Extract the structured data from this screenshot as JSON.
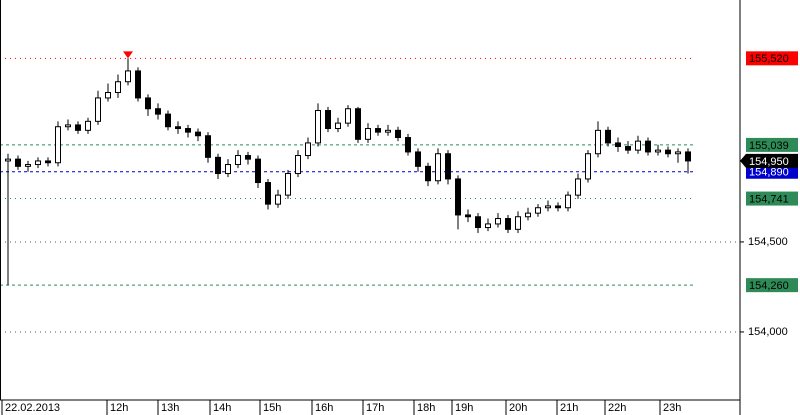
{
  "chart_data": {
    "type": "candlestick",
    "open": [
      154950,
      154960,
      154920,
      154930,
      154950,
      154940,
      155140,
      155150,
      155120,
      155170,
      155300,
      155330,
      155390,
      155450,
      155300,
      155240,
      155210,
      155140,
      155130,
      155110,
      155090,
      154970,
      154880,
      154930,
      154980,
      154960,
      154830,
      154710,
      154760,
      154880,
      154980,
      155050,
      155230,
      155130,
      155160,
      155240,
      155070,
      155130,
      155110,
      155120,
      155080,
      155000,
      154920,
      154840,
      154990,
      154850,
      154650,
      154640,
      154580,
      154600,
      154630,
      154570,
      154640,
      154660,
      154690,
      154700,
      154690,
      154760,
      154850,
      154990,
      155120,
      155050,
      155030,
      155010,
      155060,
      155000,
      155010,
      154990,
      155000
    ],
    "high": [
      154990,
      154980,
      154950,
      154970,
      154970,
      155170,
      155180,
      155170,
      155190,
      155340,
      155380,
      155430,
      155520,
      155470,
      155320,
      155270,
      155230,
      155170,
      155150,
      155130,
      155110,
      154990,
      154960,
      155010,
      155000,
      154980,
      154850,
      154790,
      154900,
      155010,
      155080,
      155270,
      155250,
      155190,
      155260,
      155250,
      155160,
      155150,
      155150,
      155140,
      155100,
      155020,
      154940,
      155020,
      155010,
      154870,
      154680,
      154660,
      154630,
      154660,
      154650,
      154670,
      154690,
      154710,
      154730,
      154720,
      154780,
      154880,
      155010,
      155170,
      155140,
      155080,
      155060,
      155090,
      155080,
      155040,
      155030,
      155020,
      155020
    ],
    "low": [
      154260,
      154900,
      154890,
      154910,
      154920,
      154920,
      155120,
      155100,
      155100,
      155150,
      155280,
      155300,
      155370,
      155280,
      155200,
      155180,
      155120,
      155100,
      155080,
      155060,
      154940,
      154850,
      154860,
      154910,
      154930,
      154800,
      154680,
      154690,
      154740,
      154860,
      154960,
      155030,
      155110,
      155110,
      155140,
      155050,
      155050,
      155090,
      155090,
      155060,
      154980,
      154890,
      154810,
      154820,
      154820,
      154570,
      154610,
      154550,
      154560,
      154580,
      154550,
      154550,
      154620,
      154640,
      154670,
      154670,
      154670,
      154740,
      154830,
      154970,
      155030,
      155000,
      154990,
      154990,
      154980,
      154980,
      154970,
      154940,
      154880
    ],
    "close": [
      154960,
      154920,
      154930,
      154950,
      154940,
      155140,
      155150,
      155120,
      155170,
      155300,
      155330,
      155390,
      155450,
      155300,
      155240,
      155210,
      155140,
      155130,
      155110,
      155090,
      154970,
      154880,
      154930,
      154980,
      154960,
      154830,
      154710,
      154760,
      154880,
      154980,
      155050,
      155230,
      155130,
      155160,
      155240,
      155070,
      155130,
      155110,
      155120,
      155080,
      155000,
      154920,
      154840,
      154990,
      154850,
      154650,
      154640,
      154580,
      154600,
      154630,
      154570,
      154640,
      154660,
      154690,
      154700,
      154690,
      154760,
      154850,
      154990,
      155120,
      155050,
      155030,
      155010,
      155060,
      155000,
      155010,
      154990,
      155000,
      154950
    ],
    "up_color": "#ffffff",
    "down_color": "#000000",
    "ylim": [
      153622,
      155844
    ],
    "yticks": [
      {
        "value": 154000,
        "label": "154,000"
      },
      {
        "value": 154500,
        "label": "154,500"
      }
    ],
    "xlim": [
      -0.8,
      73.2
    ],
    "xticks": [
      {
        "value": -0.6,
        "label": "22.02.2013"
      },
      {
        "value": 9.9,
        "label": "12h"
      },
      {
        "value": 15,
        "label": "13h"
      },
      {
        "value": 20.2,
        "label": "14h"
      },
      {
        "value": 25.2,
        "label": "15h"
      },
      {
        "value": 30.4,
        "label": "16h"
      },
      {
        "value": 35.5,
        "label": "17h"
      },
      {
        "value": 40.6,
        "label": "18h"
      },
      {
        "value": 44.4,
        "label": "19h"
      },
      {
        "value": 49.8,
        "label": "20h"
      },
      {
        "value": 54.9,
        "label": "21h"
      },
      {
        "value": 59.7,
        "label": "22h"
      },
      {
        "value": 65.2,
        "label": "23h"
      }
    ],
    "grid": true,
    "levels": [
      {
        "value": 155520,
        "label": "155,520",
        "color": "#ff0000",
        "text_color": "#000000",
        "dash": "dotted"
      },
      {
        "value": 155039,
        "label": "155,039",
        "color": "#2e8b57",
        "text_color": "#000000",
        "dash": "dashed"
      },
      {
        "value": 154890,
        "label": "154,890",
        "color": "#0000cc",
        "text_color": "#ffffff",
        "dash": "dashed"
      },
      {
        "value": 154741,
        "label": "154,741",
        "color": "#2e8b57",
        "text_color": "#000000",
        "dash": "dotted"
      },
      {
        "value": 154260,
        "label": "154,260",
        "color": "#2e8b57",
        "text_color": "#000000",
        "dash": "dashed"
      }
    ],
    "last_price": {
      "value": 154950,
      "label": "154,950",
      "color": "#000000",
      "text_color": "#ffffff"
    }
  }
}
